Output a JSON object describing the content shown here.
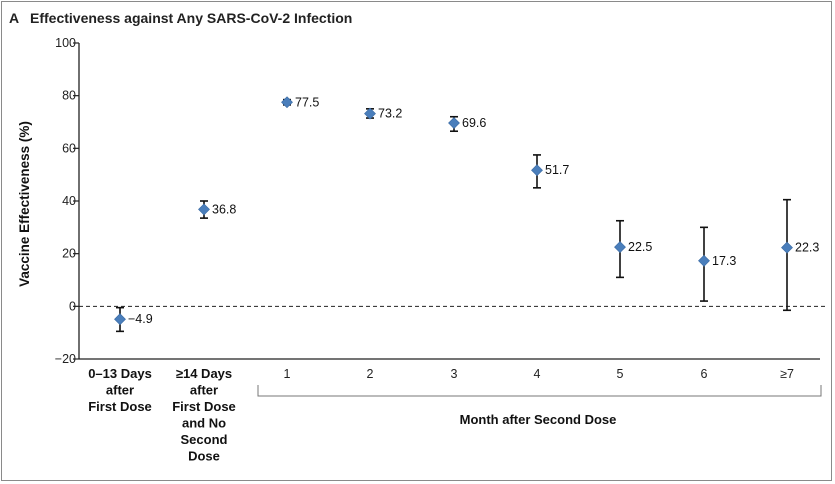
{
  "title": {
    "panel": "A",
    "text": "Effectiveness against Any SARS-CoV-2 Infection"
  },
  "chart_data": {
    "type": "scatter",
    "ylabel": "Vaccine Effectiveness (%)",
    "ylim": [
      -20,
      100
    ],
    "yticks": [
      -20,
      0,
      20,
      40,
      60,
      80,
      100
    ],
    "reference_line": {
      "y": 0,
      "style": "dashed"
    },
    "categories": [
      "0–13 Days after First Dose",
      "≥14 Days after First Dose and No Second Dose",
      "1",
      "2",
      "3",
      "4",
      "5",
      "6",
      "≥7"
    ],
    "category_lines": [
      [
        "0–13 Days",
        "after",
        "First Dose"
      ],
      [
        "≥14 Days",
        "after",
        "First Dose",
        "and No",
        "Second",
        "Dose"
      ],
      [
        "1"
      ],
      [
        "2"
      ],
      [
        "3"
      ],
      [
        "4"
      ],
      [
        "5"
      ],
      [
        "6"
      ],
      [
        "≥7"
      ]
    ],
    "group_label": "Month after Second Dose",
    "values": [
      -4.9,
      36.8,
      77.5,
      73.2,
      69.6,
      51.7,
      22.5,
      17.3,
      22.3
    ],
    "value_labels": [
      "−4.9",
      "36.8",
      "77.5",
      "73.2",
      "69.6",
      "51.7",
      "22.5",
      "17.3",
      "22.3"
    ],
    "ci_lower": [
      -9.5,
      33.5,
      76.5,
      71.5,
      66.5,
      45,
      11,
      2,
      -1.5
    ],
    "ci_upper": [
      -0.5,
      40,
      78.5,
      75,
      72,
      57.5,
      32.5,
      30,
      40.5
    ],
    "marker_color": "#4a7ebb"
  }
}
